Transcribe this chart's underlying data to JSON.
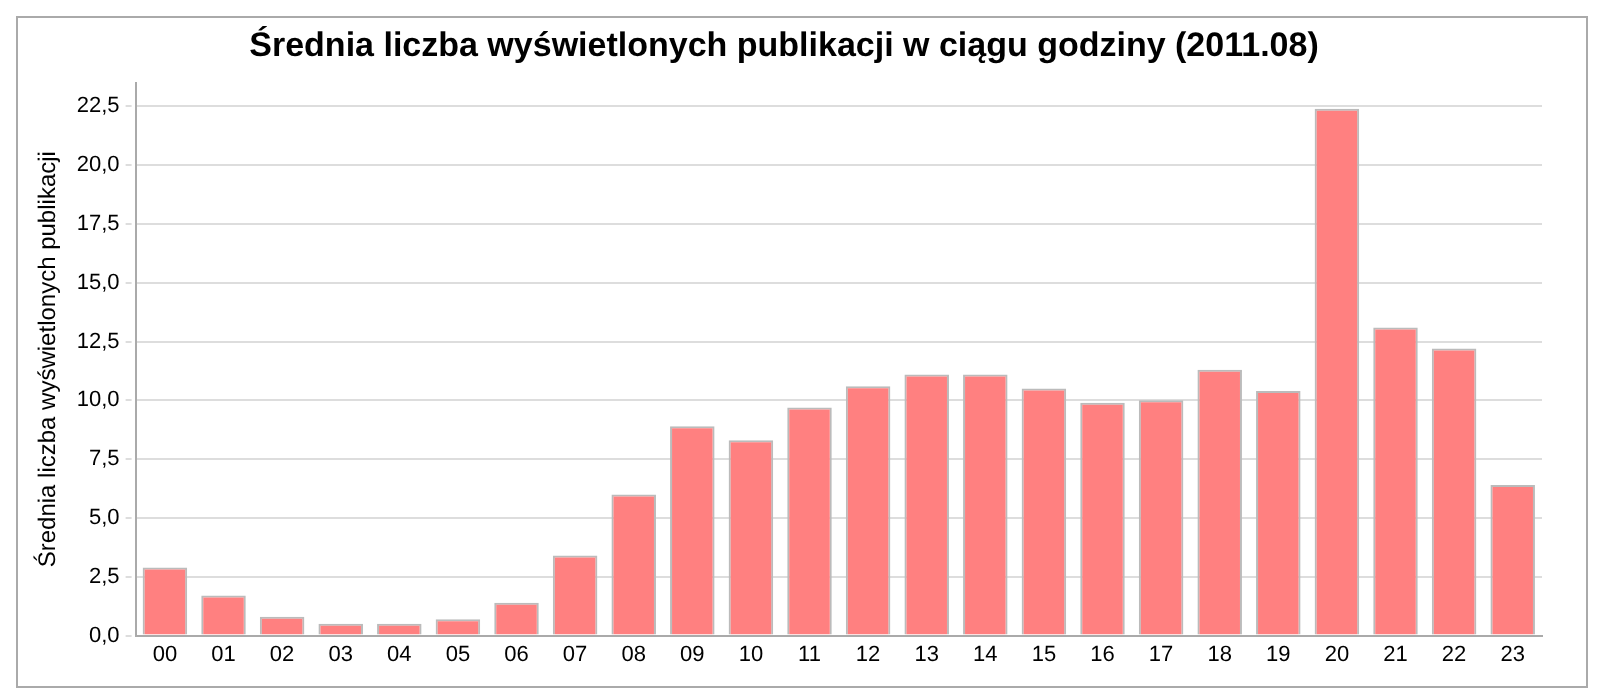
{
  "chart_data": {
    "type": "bar",
    "title": "Średnia liczba wyświetlonych publikacji w ciągu godziny (2011.08)",
    "ylabel": "Średnia liczba wyświetlonych publikacji",
    "categories": [
      "00",
      "01",
      "02",
      "03",
      "04",
      "05",
      "06",
      "07",
      "08",
      "09",
      "10",
      "11",
      "12",
      "13",
      "14",
      "15",
      "16",
      "17",
      "18",
      "19",
      "20",
      "21",
      "22",
      "23"
    ],
    "values": [
      2.9,
      1.7,
      0.8,
      0.5,
      0.5,
      0.7,
      1.4,
      3.4,
      6.0,
      8.9,
      8.3,
      9.7,
      10.6,
      11.1,
      11.1,
      10.5,
      9.9,
      10.0,
      11.3,
      10.4,
      22.4,
      13.1,
      12.2,
      6.4
    ],
    "color": "#ff8080",
    "ylim": [
      0,
      23.5
    ],
    "yticks": [
      {
        "value": 0,
        "label": "0,0"
      },
      {
        "value": 2.5,
        "label": "2,5"
      },
      {
        "value": 5,
        "label": "5,0"
      },
      {
        "value": 7.5,
        "label": "7,5"
      },
      {
        "value": 10,
        "label": "10,0"
      },
      {
        "value": 12.5,
        "label": "12,5"
      },
      {
        "value": 15,
        "label": "15,0"
      },
      {
        "value": 17.5,
        "label": "17,5"
      },
      {
        "value": 20,
        "label": "20,0"
      },
      {
        "value": 22.5,
        "label": "22,5"
      }
    ],
    "grid": "y",
    "legend": false
  }
}
